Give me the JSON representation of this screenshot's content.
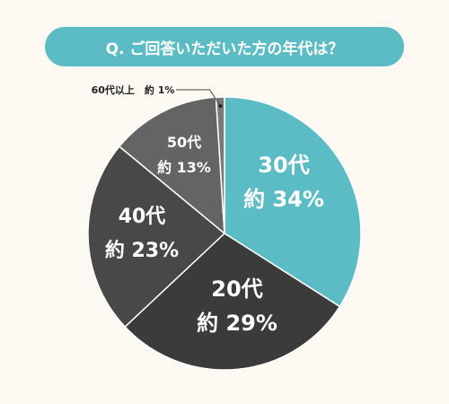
{
  "title": "Q. ご回答いただいた方の年代は？",
  "chart_data": {
    "type": "pie",
    "slices": [
      {
        "name": "30代",
        "percent_label": "約 34%",
        "value": 34,
        "color": "#5cbcc5"
      },
      {
        "name": "20代",
        "percent_label": "約 29%",
        "value": 29,
        "color": "#3b3b3b"
      },
      {
        "name": "40代",
        "percent_label": "約 23%",
        "value": 23,
        "color": "#484848"
      },
      {
        "name": "50代",
        "percent_label": "約 13%",
        "value": 13,
        "color": "#646464"
      },
      {
        "name": "60代以上",
        "percent_label": "約 1%",
        "value": 1,
        "color": "#7a7a7a"
      }
    ],
    "start": "12 o'clock",
    "direction": "clockwise",
    "legend": "none"
  }
}
